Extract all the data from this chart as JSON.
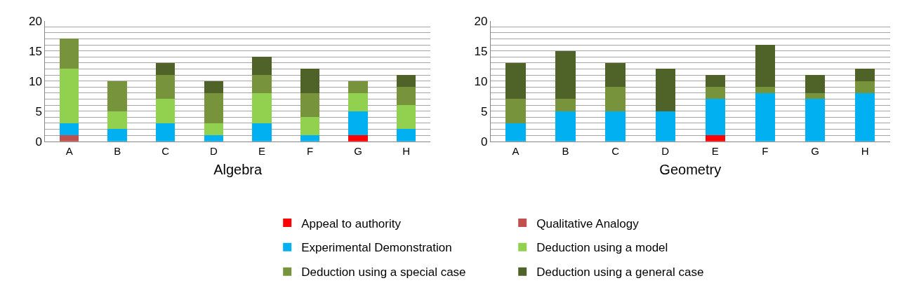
{
  "chart_data": [
    {
      "type": "bar",
      "xlabel": "Algebra",
      "stacked": true,
      "categories": [
        "A",
        "B",
        "C",
        "D",
        "E",
        "F",
        "G",
        "H"
      ],
      "ylim": [
        0,
        20
      ],
      "yticks": [
        0,
        {
          "value": 1,
          "label": null
        },
        {
          "value": 2,
          "label": null
        },
        {
          "value": 3,
          "label": null
        },
        {
          "value": 4,
          "label": null
        },
        5,
        {
          "value": 6,
          "label": null
        },
        {
          "value": 7,
          "label": null
        },
        {
          "value": 8,
          "label": null
        },
        {
          "value": 9,
          "label": null
        },
        10,
        {
          "value": 11,
          "label": null
        },
        {
          "value": 12,
          "label": null
        },
        {
          "value": 13,
          "label": null
        },
        {
          "value": 14,
          "label": null
        },
        15,
        {
          "value": 16,
          "label": null
        },
        {
          "value": 17,
          "label": null
        },
        {
          "value": 18,
          "label": null
        },
        {
          "value": 19,
          "label": null
        },
        20
      ],
      "grid": "y",
      "legend": "bottom",
      "series": [
        {
          "name": "Appeal to authority",
          "color": "#ff0000",
          "values": [
            0,
            0,
            0,
            0,
            0,
            0,
            1,
            0
          ]
        },
        {
          "name": "Qualitative Analogy",
          "color": "#c0504d",
          "values": [
            1,
            0,
            0,
            0,
            0,
            0,
            0,
            0
          ]
        },
        {
          "name": "Experimental Demonstration",
          "color": "#00b0f0",
          "values": [
            2,
            2,
            3,
            1,
            3,
            1,
            4,
            2
          ]
        },
        {
          "name": "Deduction using a model",
          "color": "#92d050",
          "values": [
            9,
            3,
            4,
            2,
            5,
            3,
            3,
            4
          ]
        },
        {
          "name": "Deduction using a special case",
          "color": "#77933c",
          "values": [
            5,
            5,
            4,
            5,
            3,
            4,
            2,
            3
          ]
        },
        {
          "name": "Deduction using a general case",
          "color": "#4f6228",
          "values": [
            0,
            0,
            2,
            2,
            3,
            4,
            0,
            2
          ]
        }
      ]
    },
    {
      "type": "bar",
      "xlabel": "Geometry",
      "stacked": true,
      "categories": [
        "A",
        "B",
        "C",
        "D",
        "E",
        "F",
        "G",
        "H"
      ],
      "ylim": [
        0,
        20
      ],
      "yticks": [
        0,
        {
          "value": 1,
          "label": null
        },
        {
          "value": 2,
          "label": null
        },
        {
          "value": 3,
          "label": null
        },
        {
          "value": 4,
          "label": null
        },
        5,
        {
          "value": 6,
          "label": null
        },
        {
          "value": 7,
          "label": null
        },
        {
          "value": 8,
          "label": null
        },
        {
          "value": 9,
          "label": null
        },
        10,
        {
          "value": 11,
          "label": null
        },
        {
          "value": 12,
          "label": null
        },
        {
          "value": 13,
          "label": null
        },
        {
          "value": 14,
          "label": null
        },
        15,
        {
          "value": 16,
          "label": null
        },
        {
          "value": 17,
          "label": null
        },
        {
          "value": 18,
          "label": null
        },
        {
          "value": 19,
          "label": null
        },
        20
      ],
      "grid": "y",
      "series": [
        {
          "color": "#ff0000",
          "values": [
            0,
            0,
            0,
            0,
            1,
            0,
            0,
            0
          ]
        },
        {
          "color": "#c0504d",
          "values": [
            0,
            0,
            0,
            0,
            0,
            0,
            0,
            0
          ]
        },
        {
          "color": "#00b0f0",
          "values": [
            3,
            5,
            5,
            5,
            6,
            8,
            7,
            8
          ]
        },
        {
          "color": "#92d050",
          "values": [
            0,
            0,
            0,
            0,
            0,
            0,
            0,
            0
          ]
        },
        {
          "color": "#77933c",
          "values": [
            4,
            2,
            4,
            0,
            2,
            1,
            1,
            2
          ]
        },
        {
          "color": "#4f6228",
          "values": [
            6,
            8,
            4,
            7,
            2,
            7,
            3,
            2
          ]
        }
      ]
    }
  ]
}
